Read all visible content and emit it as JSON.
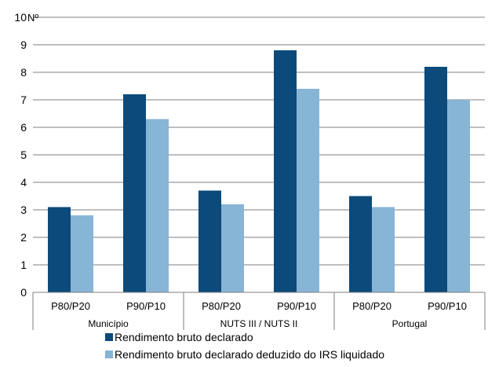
{
  "chart_data": {
    "type": "bar",
    "ylabel_unit": "Nº",
    "ylim": [
      0,
      10
    ],
    "yticks": [
      0,
      1,
      2,
      3,
      4,
      5,
      6,
      7,
      8,
      9,
      10
    ],
    "grid": true,
    "legend_position": "bottom",
    "groups": [
      {
        "label": "Município",
        "categories": [
          "P80/P20",
          "P90/P10"
        ]
      },
      {
        "label": "NUTS III / NUTS II",
        "categories": [
          "P80/P20",
          "P90/P10"
        ]
      },
      {
        "label": "Portugal",
        "categories": [
          "P80/P20",
          "P90/P10"
        ]
      }
    ],
    "categories": [
      "P80/P20",
      "P90/P10",
      "P80/P20",
      "P90/P10",
      "P80/P20",
      "P90/P10"
    ],
    "series": [
      {
        "name": "Rendimento bruto declarado",
        "color": "#0b4a7a",
        "values": [
          3.1,
          7.2,
          3.7,
          8.8,
          3.5,
          8.2
        ]
      },
      {
        "name": "Rendimento bruto declarado deduzido do IRS liquidado",
        "color": "#87b5d6",
        "values": [
          2.8,
          6.3,
          3.2,
          7.4,
          3.1,
          7.0
        ]
      }
    ]
  }
}
